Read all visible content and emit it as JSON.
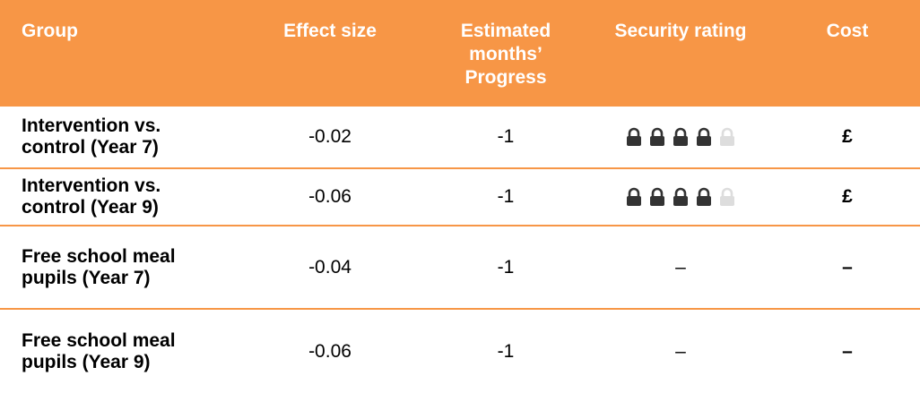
{
  "table": {
    "header": [
      "Group",
      "Effect size",
      "Estimated months’ Progress",
      "Security rating",
      "Cost"
    ],
    "rows": [
      [
        "Intervention vs. control (Year 7)",
        "-0.02",
        "-1",
        {
          "rating": 4,
          "out_of": 5
        },
        "£"
      ],
      [
        "Intervention vs. control (Year 9)",
        "-0.06",
        "-1",
        {
          "rating": 4,
          "out_of": 5
        },
        "£"
      ],
      [
        "Free school meal pupils (Year 7)",
        "-0.04",
        "-1",
        "–",
        "–"
      ],
      [
        "Free school meal pupils (Year 9)",
        "-0.06",
        "-1",
        "–",
        "–"
      ]
    ]
  }
}
